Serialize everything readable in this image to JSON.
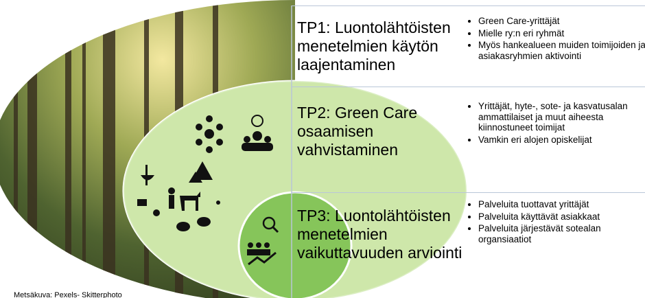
{
  "rows": [
    {
      "title": "TP1: Luontolähtöisten menetelmien käytön laajentaminen",
      "bullets": [
        "Green Care-yrittäjät",
        "Mielle ry:n eri ryhmät",
        "Myös hankealueen muiden toimijoiden ja asiakasryhmien aktivointi"
      ]
    },
    {
      "title": "TP2: Green Care osaamisen vahvistaminen",
      "bullets": [
        "Yrittäjät, hyte-, sote- ja kasvatusalan ammattilaiset ja muut aiheesta kiinnostuneet toimijat",
        "Vamkin eri alojen opiskelijat"
      ]
    },
    {
      "title": "TP3: Luontolähtöisten menetelmien vaikuttavuuden arviointi",
      "bullets": [
        "Palveluita tuottavat yrittäjät",
        "Palveluita käyttävät asiakkaat",
        "Palveluita järjestävät sotealan organsiaatiot"
      ]
    }
  ],
  "caption": "Metsäkuva: Pexels- Skitterphoto"
}
